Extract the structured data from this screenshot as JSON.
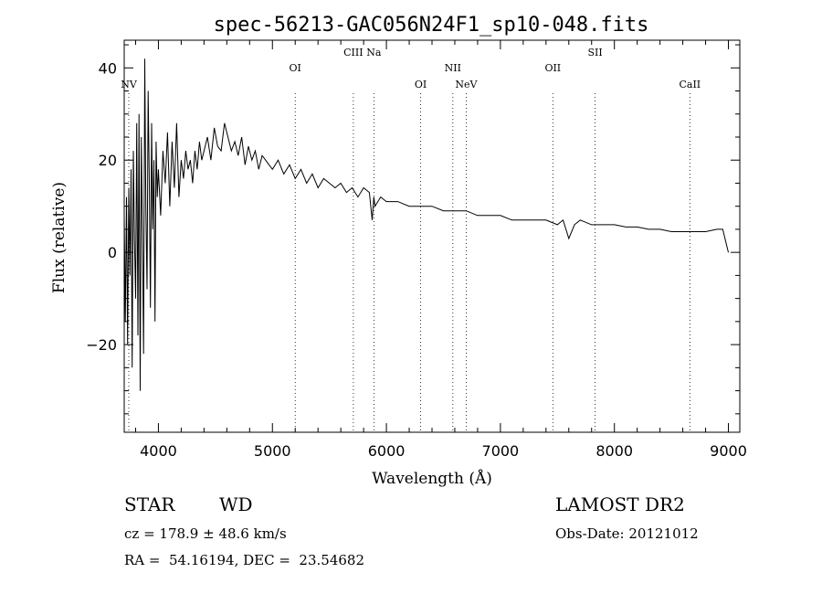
{
  "chart_data": {
    "type": "line",
    "title": "spec-56213-GAC056N24F1_sp10-048.fits",
    "xlabel": "Wavelength (Å)",
    "ylabel": "Flux (relative)",
    "xlim": [
      3700,
      9100
    ],
    "ylim": [
      -39,
      46
    ],
    "x_ticks": [
      4000,
      5000,
      6000,
      7000,
      8000,
      9000
    ],
    "x_tick_labels": [
      "4000",
      "5000",
      "6000",
      "7000",
      "8000",
      "9000"
    ],
    "y_ticks": [
      -20,
      0,
      20,
      40
    ],
    "y_tick_labels": [
      "−20",
      "0",
      "20",
      "40"
    ],
    "grid": false,
    "line_color": "#000000",
    "series": [
      {
        "x": [
          3700,
          3710,
          3720,
          3730,
          3740,
          3750,
          3760,
          3770,
          3780,
          3790,
          3800,
          3810,
          3820,
          3830,
          3840,
          3850,
          3860,
          3870,
          3880,
          3890,
          3900,
          3910,
          3920,
          3930,
          3940,
          3950,
          3960,
          3970,
          3980,
          3990,
          4000,
          4020,
          4040,
          4060,
          4080,
          4100,
          4120,
          4140,
          4160,
          4180,
          4200,
          4220,
          4240,
          4260,
          4280,
          4300,
          4320,
          4340,
          4360,
          4380,
          4400,
          4430,
          4460,
          4490,
          4520,
          4550,
          4580,
          4610,
          4640,
          4670,
          4700,
          4730,
          4760,
          4790,
          4820,
          4850,
          4880,
          4910,
          4940,
          4970,
          5000,
          5050,
          5100,
          5150,
          5200,
          5250,
          5300,
          5350,
          5400,
          5450,
          5500,
          5550,
          5600,
          5650,
          5700,
          5750,
          5800,
          5850,
          5875,
          5890,
          5900,
          5950,
          6000,
          6100,
          6200,
          6300,
          6400,
          6500,
          6600,
          6700,
          6800,
          6900,
          7000,
          7100,
          7200,
          7300,
          7400,
          7500,
          7550,
          7600,
          7650,
          7700,
          7800,
          7850,
          7900,
          8000,
          8100,
          8200,
          8300,
          8400,
          8500,
          8600,
          8700,
          8800,
          8900,
          8950,
          9000
        ],
        "y": [
          8,
          -15,
          12,
          -20,
          14,
          -5,
          18,
          -25,
          22,
          3,
          -10,
          28,
          -18,
          30,
          -30,
          25,
          4,
          -22,
          42,
          10,
          -8,
          35,
          15,
          -12,
          28,
          5,
          20,
          -15,
          24,
          12,
          18,
          8,
          22,
          15,
          26,
          10,
          24,
          14,
          28,
          12,
          20,
          16,
          22,
          18,
          20,
          15,
          22,
          18,
          24,
          20,
          22,
          25,
          20,
          27,
          23,
          22,
          28,
          25,
          22,
          24,
          21,
          25,
          19,
          23,
          20,
          22,
          18,
          21,
          20,
          19,
          18,
          20,
          17,
          19,
          16,
          18,
          15,
          17,
          14,
          16,
          15,
          14,
          15,
          13,
          14,
          12,
          14,
          13,
          7,
          12,
          10,
          12,
          11,
          11,
          10,
          10,
          10,
          9,
          9,
          9,
          8,
          8,
          8,
          7,
          7,
          7,
          7,
          6,
          7,
          3,
          6,
          7,
          6,
          6,
          6,
          6,
          5.5,
          5.5,
          5,
          5,
          4.5,
          4.5,
          4.5,
          4.5,
          5,
          5,
          0
        ]
      }
    ],
    "lines": [
      {
        "label": "NV",
        "x": 3740,
        "row": 2
      },
      {
        "label": "OI",
        "x": 5200,
        "row": 1
      },
      {
        "label": "CIII",
        "x": 5710,
        "row": 0
      },
      {
        "label": "Na",
        "x": 5890,
        "row": 0
      },
      {
        "label": "OI",
        "x": 6300,
        "row": 2
      },
      {
        "label": "NII",
        "x": 6583,
        "row": 1
      },
      {
        "label": "NeV",
        "x": 6700,
        "row": 2
      },
      {
        "label": "OII",
        "x": 7460,
        "row": 1
      },
      {
        "label": "SII",
        "x": 7831,
        "row": 0
      },
      {
        "label": "CaII",
        "x": 8662,
        "row": 2
      }
    ]
  },
  "info": {
    "class_label": "STAR",
    "subclass": "WD",
    "survey": "LAMOST DR2",
    "cz": "cz = 178.9 ± 48.6 km/s",
    "obs_date": "Obs-Date: 20121012",
    "coords": "RA =  54.16194, DEC =  23.54682"
  }
}
